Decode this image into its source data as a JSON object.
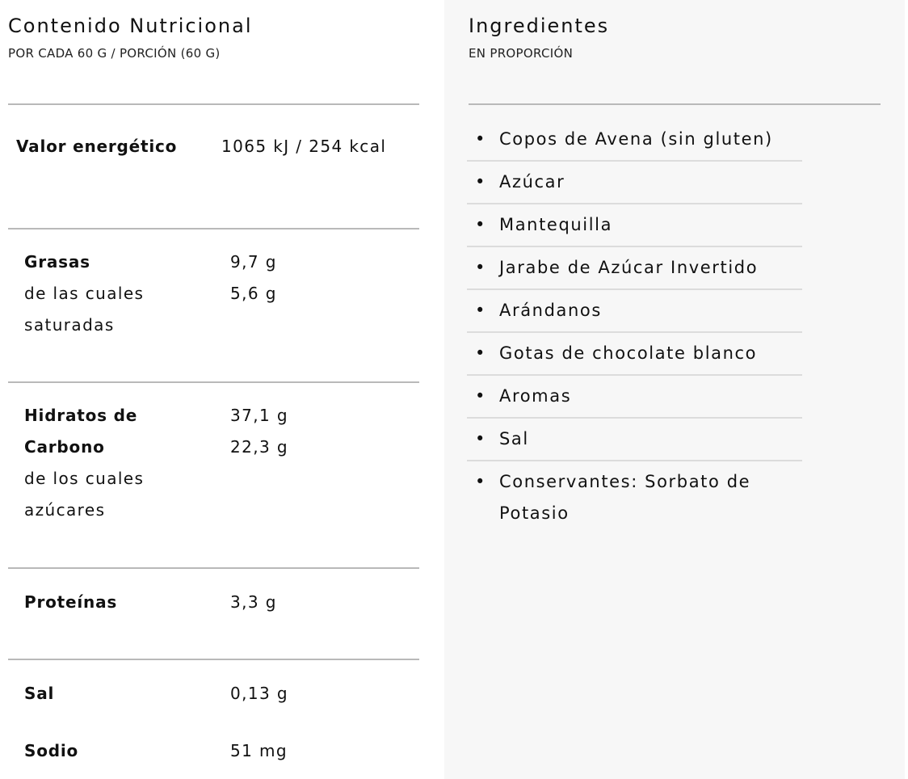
{
  "nutrition": {
    "title": "Contenido Nutricional",
    "subtitle": "POR CADA 60 G / PORCIÓN (60 G)",
    "rows": [
      {
        "label": "Valor energético",
        "value": "1065 kJ / 254 kcal"
      },
      {
        "label": "Grasas",
        "sublabel": "de las cuales saturadas",
        "value": "9,7 g",
        "subvalue": "5,6 g"
      },
      {
        "label": "Hidratos de Carbono",
        "sublabel": "de los cuales azúcares",
        "value": "37,1 g",
        "subvalue": "22,3 g"
      },
      {
        "label": "Proteínas",
        "value": "3,3 g"
      },
      {
        "label": "Sal",
        "value": "0,13 g"
      },
      {
        "label": "Sodio",
        "value": "51 mg"
      }
    ]
  },
  "ingredients": {
    "title": "Ingredientes",
    "subtitle": "EN PROPORCIÓN",
    "bullet": "•",
    "items": [
      "Copos de Avena (sin gluten)",
      "Azúcar",
      "Mantequilla",
      "Jarabe de Azúcar Invertido",
      "Arándanos",
      "Gotas de chocolate blanco",
      "Aromas",
      "Sal",
      "Conservantes: Sorbato de Potasio"
    ]
  }
}
